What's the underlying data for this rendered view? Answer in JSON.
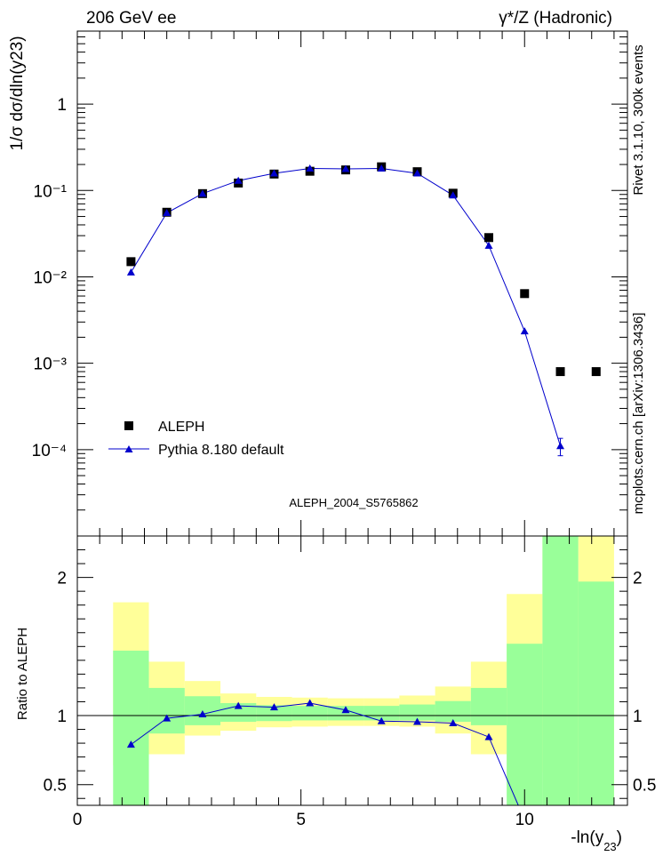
{
  "header": {
    "left": "206 GeV ee",
    "right": "γ*/Z (Hadronic)"
  },
  "side": {
    "rivet": "Rivet 3.1.10,  300k events",
    "source": "mcplots.cern.ch [arXiv:1306.3436]"
  },
  "watermark": "ALEPH_2004_S5765862",
  "chart_data": [
    {
      "type": "scatter",
      "title": "",
      "ylabel": "1/σ  dσ/dln(y23)",
      "xlabel": "",
      "xlim": [
        0,
        12.3
      ],
      "ylim": [
        1e-05,
        7
      ],
      "yscale": "log",
      "y_ticks": [
        {
          "label": "1",
          "value": 1
        },
        {
          "label": "10⁻¹",
          "value": 0.1
        },
        {
          "label": "10⁻²",
          "value": 0.01
        },
        {
          "label": "10⁻³",
          "value": 0.001
        },
        {
          "label": "10⁻⁴",
          "value": 0.0001
        }
      ],
      "legend_position": "lower-left",
      "series": [
        {
          "name": "ALEPH",
          "marker": "square",
          "color": "#000000",
          "x": [
            1.2,
            2.0,
            2.8,
            3.6,
            4.4,
            5.2,
            6.0,
            6.8,
            7.6,
            8.4,
            9.2,
            10.0,
            10.8,
            11.6
          ],
          "y": [
            0.015,
            0.056,
            0.092,
            0.122,
            0.155,
            0.167,
            0.173,
            0.188,
            0.165,
            0.093,
            0.0285,
            0.0064,
            0.0008,
            0.0008
          ]
        },
        {
          "name": "Pythia 8.180 default",
          "marker": "triangle",
          "color": "#0000cc",
          "x": [
            1.2,
            2.0,
            2.8,
            3.6,
            4.4,
            5.2,
            6.0,
            6.8,
            7.6,
            8.4,
            9.2,
            10.0,
            10.8
          ],
          "y": [
            0.0113,
            0.055,
            0.092,
            0.13,
            0.158,
            0.18,
            0.178,
            0.18,
            0.158,
            0.088,
            0.023,
            0.00235,
            0.00011
          ],
          "yerr": [
            0,
            0,
            0,
            0,
            0,
            0,
            0,
            0,
            0,
            0,
            0,
            0,
            2.5e-05
          ]
        }
      ]
    },
    {
      "type": "line",
      "title": "",
      "ylabel": "Ratio to ALEPH",
      "xlabel": "-ln(y23)",
      "xlim": [
        0,
        12.3
      ],
      "ylim": [
        0.35,
        2.3
      ],
      "x_ticks": [
        0,
        5,
        10
      ],
      "y_ticks": [
        0.5,
        1,
        2
      ],
      "reference_line": 1,
      "bands": {
        "bin_edges": [
          0.8,
          1.6,
          2.4,
          3.2,
          4.0,
          4.8,
          5.6,
          6.4,
          7.2,
          8.0,
          8.8,
          9.6,
          10.4,
          11.2,
          12.0
        ],
        "green_low": [
          0.35,
          0.87,
          0.93,
          0.955,
          0.96,
          0.965,
          0.965,
          0.965,
          0.965,
          0.955,
          0.93,
          0.35,
          0.35,
          0.35
        ],
        "green_high": [
          1.47,
          1.2,
          1.14,
          1.09,
          1.075,
          1.07,
          1.07,
          1.07,
          1.08,
          1.105,
          1.2,
          1.52,
          2.3,
          1.97
        ],
        "yellow_low": [
          0.64,
          0.72,
          0.855,
          0.89,
          0.915,
          0.92,
          0.925,
          0.925,
          0.92,
          0.87,
          0.72,
          0.59,
          0.35,
          0.35
        ],
        "yellow_high": [
          1.82,
          1.39,
          1.25,
          1.16,
          1.135,
          1.13,
          1.125,
          1.125,
          1.145,
          1.21,
          1.39,
          1.88,
          2.3,
          2.3
        ],
        "green_color": "#99ff99",
        "yellow_color": "#ffff99"
      },
      "series": [
        {
          "name": "Pythia 8.180 default",
          "color": "#0000cc",
          "x": [
            1.2,
            2.0,
            2.8,
            3.6,
            4.4,
            5.2,
            6.0,
            6.8,
            7.6,
            8.4,
            9.2,
            9.86
          ],
          "y": [
            0.79,
            0.98,
            1.01,
            1.07,
            1.06,
            1.09,
            1.04,
            0.96,
            0.955,
            0.945,
            0.845,
            0.35
          ],
          "markers": [
            true,
            true,
            true,
            true,
            true,
            true,
            true,
            true,
            true,
            true,
            true,
            false
          ]
        }
      ]
    }
  ]
}
